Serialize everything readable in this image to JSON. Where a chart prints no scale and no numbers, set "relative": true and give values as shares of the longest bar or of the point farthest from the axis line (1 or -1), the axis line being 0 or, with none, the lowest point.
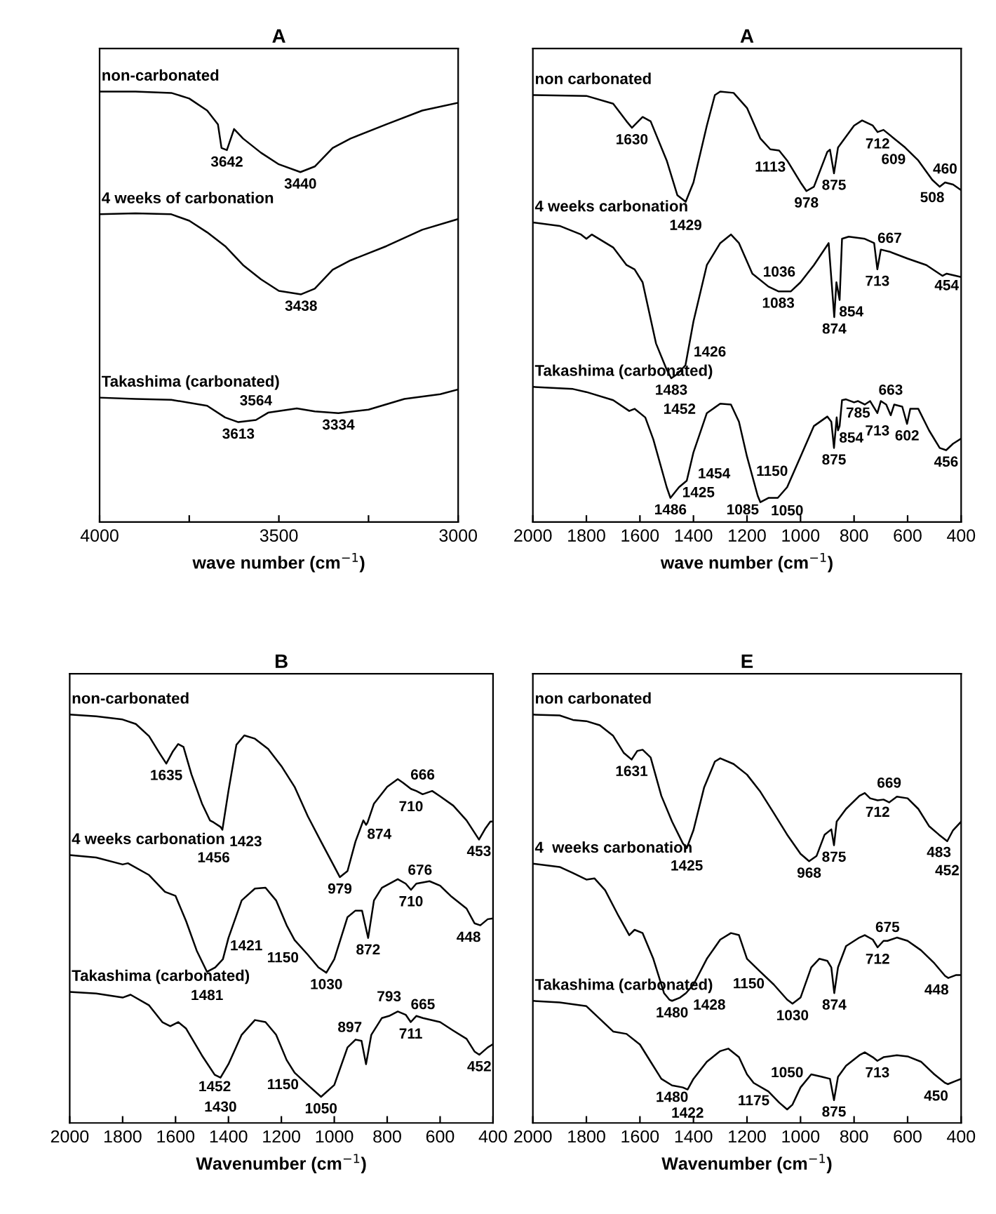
{
  "chart_data": [
    {
      "type": "line",
      "title": "A",
      "xlabel": "wave number (cm$^{−1}$)",
      "relative": true,
      "xlim": [
        4000,
        3000
      ],
      "xticks": [
        4000,
        {
          "value": 3750,
          "label": null
        },
        3500,
        {
          "value": 3250,
          "label": null
        },
        3000
      ],
      "tick_labels": "x",
      "grid": false,
      "legend": false,
      "line_style": "solid",
      "marker": "none",
      "series": [
        {
          "name": "non-carbonated",
          "color": "#000000",
          "x": [
            4000,
            3900,
            3800,
            3750,
            3700,
            3670,
            3660,
            3645,
            3625,
            3600,
            3550,
            3500,
            3440,
            3400,
            3350,
            3300,
            3200,
            3100,
            3000
          ],
          "values": [
            1.0,
            1.0,
            0.997,
            0.984,
            0.956,
            0.924,
            0.869,
            0.864,
            0.913,
            0.891,
            0.858,
            0.831,
            0.813,
            0.826,
            0.869,
            0.891,
            0.924,
            0.956,
            0.974
          ]
        },
        {
          "name": "4 weeks of carbonation",
          "color": "#000000",
          "x": [
            4000,
            3900,
            3800,
            3750,
            3700,
            3650,
            3600,
            3550,
            3500,
            3438,
            3400,
            3350,
            3300,
            3200,
            3100,
            3000
          ],
          "values": [
            0.715,
            0.717,
            0.715,
            0.7,
            0.673,
            0.641,
            0.597,
            0.564,
            0.537,
            0.529,
            0.542,
            0.586,
            0.608,
            0.641,
            0.679,
            0.704
          ]
        },
        {
          "name": "Takashima (carbonated)",
          "color": "#000000",
          "x": [
            4000,
            3900,
            3800,
            3700,
            3650,
            3613,
            3564,
            3530,
            3450,
            3400,
            3334,
            3250,
            3150,
            3050,
            3000
          ],
          "values": [
            0.289,
            0.286,
            0.284,
            0.27,
            0.243,
            0.232,
            0.237,
            0.254,
            0.264,
            0.257,
            0.253,
            0.261,
            0.286,
            0.297,
            0.308
          ]
        }
      ],
      "annotations": [
        {
          "text": "3642",
          "x": 3645,
          "y": 0.864
        },
        {
          "text": "3440",
          "x": 3440,
          "y": 0.813
        },
        {
          "text": "3438",
          "x": 3438,
          "y": 0.529
        },
        {
          "text": "3613",
          "x": 3613,
          "y": 0.232
        },
        {
          "text": "3564",
          "x": 3564,
          "y": 0.237
        },
        {
          "text": "3334",
          "x": 3334,
          "y": 0.253
        }
      ]
    },
    {
      "type": "line",
      "title": "A",
      "xlabel": "wave number (cm$^{−1}$)",
      "relative": true,
      "xlim": [
        2000,
        400
      ],
      "xticks": [
        2000,
        1800,
        1600,
        1400,
        1200,
        1000,
        800,
        600,
        400
      ],
      "tick_labels": "x",
      "grid": false,
      "legend": false,
      "line_style": "solid",
      "marker": "none",
      "series": [
        {
          "name": "non carbonated",
          "color": "#000000",
          "x": [
            2000,
            1800,
            1700,
            1650,
            1630,
            1590,
            1560,
            1500,
            1460,
            1429,
            1400,
            1350,
            1320,
            1300,
            1250,
            1200,
            1150,
            1113,
            1080,
            1050,
            1000,
            978,
            950,
            900,
            890,
            875,
            860,
            800,
            770,
            730,
            712,
            690,
            609,
            560,
            508,
            480,
            460,
            430,
            400
          ],
          "values": [
            0.992,
            0.99,
            0.972,
            0.931,
            0.916,
            0.941,
            0.931,
            0.84,
            0.759,
            0.744,
            0.789,
            0.921,
            0.992,
            1.0,
            0.997,
            0.962,
            0.891,
            0.866,
            0.863,
            0.84,
            0.789,
            0.769,
            0.779,
            0.86,
            0.865,
            0.81,
            0.87,
            0.921,
            0.933,
            0.921,
            0.906,
            0.911,
            0.87,
            0.84,
            0.795,
            0.779,
            0.789,
            0.784,
            0.771
          ]
        },
        {
          "name": "4 weeks carbonation",
          "color": "#000000",
          "x": [
            2000,
            1900,
            1820,
            1800,
            1780,
            1700,
            1650,
            1620,
            1590,
            1540,
            1500,
            1483,
            1460,
            1430,
            1400,
            1350,
            1300,
            1260,
            1230,
            1180,
            1120,
            1083,
            1036,
            1000,
            950,
            895,
            874,
            866,
            854,
            845,
            820,
            760,
            725,
            713,
            700,
            667,
            600,
            530,
            470,
            454,
            420,
            400
          ],
          "values": [
            0.696,
            0.688,
            0.668,
            0.658,
            0.668,
            0.638,
            0.597,
            0.587,
            0.557,
            0.415,
            0.354,
            0.334,
            0.344,
            0.364,
            0.466,
            0.597,
            0.648,
            0.668,
            0.648,
            0.577,
            0.547,
            0.536,
            0.536,
            0.557,
            0.597,
            0.648,
            0.476,
            0.557,
            0.516,
            0.658,
            0.663,
            0.658,
            0.648,
            0.587,
            0.633,
            0.628,
            0.612,
            0.597,
            0.572,
            0.577,
            0.572,
            0.569
          ]
        },
        {
          "name": "Takashima (carbonated)",
          "color": "#000000",
          "x": [
            2000,
            1850,
            1800,
            1700,
            1640,
            1620,
            1580,
            1550,
            1500,
            1486,
            1454,
            1425,
            1400,
            1350,
            1300,
            1260,
            1230,
            1200,
            1160,
            1150,
            1120,
            1085,
            1050,
            1000,
            950,
            900,
            885,
            875,
            865,
            860,
            854,
            845,
            830,
            800,
            785,
            760,
            740,
            713,
            700,
            680,
            663,
            650,
            620,
            602,
            590,
            560,
            520,
            480,
            456,
            430,
            400
          ],
          "values": [
            0.314,
            0.309,
            0.302,
            0.283,
            0.258,
            0.263,
            0.243,
            0.192,
            0.081,
            0.056,
            0.081,
            0.096,
            0.162,
            0.253,
            0.275,
            0.273,
            0.233,
            0.152,
            0.061,
            0.046,
            0.056,
            0.056,
            0.081,
            0.152,
            0.223,
            0.245,
            0.233,
            0.172,
            0.243,
            0.213,
            0.223,
            0.283,
            0.285,
            0.278,
            0.281,
            0.273,
            0.281,
            0.253,
            0.281,
            0.273,
            0.248,
            0.273,
            0.268,
            0.228,
            0.263,
            0.263,
            0.213,
            0.172,
            0.167,
            0.182,
            0.194
          ]
        }
      ],
      "annotations": [
        {
          "text": "1630",
          "x": 1630,
          "y": 0.916
        },
        {
          "text": "1429",
          "x": 1429,
          "y": 0.744
        },
        {
          "text": "1113",
          "x": 1113,
          "y": 0.866
        },
        {
          "text": "978",
          "x": 978,
          "y": 0.769
        },
        {
          "text": "875",
          "x": 875,
          "y": 0.81
        },
        {
          "text": "712",
          "x": 712,
          "y": 0.906
        },
        {
          "text": "609",
          "x": 609,
          "y": 0.87
        },
        {
          "text": "508",
          "x": 508,
          "y": 0.795
        },
        {
          "text": "460",
          "x": 460,
          "y": 0.789
        },
        {
          "text": "667",
          "x": 667,
          "y": 0.628
        },
        {
          "text": "713",
          "x": 713,
          "y": 0.587
        },
        {
          "text": "1083",
          "x": 1083,
          "y": 0.536
        },
        {
          "text": "1036",
          "x": 1036,
          "y": 0.536
        },
        {
          "text": "854",
          "x": 854,
          "y": 0.516
        },
        {
          "text": "874",
          "x": 874,
          "y": 0.476
        },
        {
          "text": "454",
          "x": 454,
          "y": 0.577
        },
        {
          "text": "1483",
          "x": 1483,
          "y": 0.334
        },
        {
          "text": "1426",
          "x": 1426,
          "y": 0.364
        },
        {
          "text": "1452",
          "x": 1452,
          "y": 0.344
        },
        {
          "text": "785",
          "x": 785,
          "y": 0.281
        },
        {
          "text": "713",
          "x": 713,
          "y": 0.253
        },
        {
          "text": "602",
          "x": 602,
          "y": 0.228
        },
        {
          "text": "854",
          "x": 854,
          "y": 0.223
        },
        {
          "text": "663",
          "x": 663,
          "y": 0.248
        },
        {
          "text": "875",
          "x": 875,
          "y": 0.172
        },
        {
          "text": "456",
          "x": 456,
          "y": 0.167
        },
        {
          "text": "1425",
          "x": 1425,
          "y": 0.096
        },
        {
          "text": "1050",
          "x": 1050,
          "y": 0.081
        },
        {
          "text": "1486",
          "x": 1486,
          "y": 0.056
        },
        {
          "text": "1454",
          "x": 1454,
          "y": 0.081
        },
        {
          "text": "1150",
          "x": 1150,
          "y": 0.046
        },
        {
          "text": "1085",
          "x": 1085,
          "y": 0.056
        }
      ]
    },
    {
      "type": "line",
      "title": "B",
      "xlabel": "Wavenumber (cm$^{−1}$)",
      "relative": true,
      "xlim": [
        2000,
        400
      ],
      "xticks": [
        2000,
        1800,
        1600,
        1400,
        1200,
        1000,
        800,
        600,
        400
      ],
      "tick_labels": "x",
      "grid": false,
      "legend": false,
      "line_style": "solid",
      "marker": "none",
      "series": [
        {
          "name": "non-carbonated",
          "color": "#000000",
          "x": [
            2000,
            1900,
            1800,
            1750,
            1700,
            1660,
            1635,
            1610,
            1590,
            1570,
            1540,
            1500,
            1470,
            1456,
            1430,
            1423,
            1400,
            1370,
            1340,
            1300,
            1250,
            1200,
            1150,
            1100,
            1050,
            1000,
            979,
            950,
            920,
            890,
            880,
            874,
            850,
            800,
            760,
            740,
            710,
            690,
            666,
            630,
            600,
            550,
            500,
            453,
            430,
            410,
            400
          ],
          "values": [
            1.0,
            0.996,
            0.988,
            0.977,
            0.947,
            0.905,
            0.88,
            0.91,
            0.928,
            0.921,
            0.854,
            0.782,
            0.741,
            0.736,
            0.725,
            0.718,
            0.813,
            0.926,
            0.949,
            0.941,
            0.916,
            0.874,
            0.823,
            0.751,
            0.689,
            0.628,
            0.602,
            0.617,
            0.689,
            0.741,
            0.73,
            0.736,
            0.782,
            0.823,
            0.842,
            0.833,
            0.818,
            0.813,
            0.805,
            0.813,
            0.8,
            0.777,
            0.741,
            0.694,
            0.72,
            0.738,
            0.738
          ]
        },
        {
          "name": "4 weeks carbonation",
          "color": "#000000",
          "x": [
            2000,
            1900,
            1800,
            1780,
            1700,
            1640,
            1600,
            1560,
            1520,
            1481,
            1450,
            1421,
            1400,
            1350,
            1300,
            1260,
            1220,
            1180,
            1150,
            1100,
            1060,
            1030,
            1000,
            950,
            920,
            895,
            872,
            850,
            820,
            760,
            730,
            710,
            690,
            640,
            600,
            560,
            500,
            470,
            448,
            420,
            400
          ],
          "values": [
            0.656,
            0.65,
            0.633,
            0.636,
            0.607,
            0.566,
            0.556,
            0.494,
            0.422,
            0.37,
            0.381,
            0.401,
            0.453,
            0.545,
            0.574,
            0.576,
            0.545,
            0.484,
            0.448,
            0.412,
            0.381,
            0.368,
            0.401,
            0.504,
            0.52,
            0.52,
            0.453,
            0.545,
            0.576,
            0.597,
            0.586,
            0.571,
            0.586,
            0.592,
            0.581,
            0.556,
            0.525,
            0.489,
            0.484,
            0.499,
            0.501
          ]
        },
        {
          "name": "Takashima (carbonated)",
          "color": "#000000",
          "x": [
            2000,
            1900,
            1800,
            1770,
            1700,
            1650,
            1620,
            1590,
            1560,
            1500,
            1452,
            1430,
            1400,
            1350,
            1300,
            1260,
            1220,
            1180,
            1150,
            1100,
            1050,
            1000,
            950,
            920,
            897,
            880,
            860,
            820,
            793,
            760,
            730,
            711,
            690,
            665,
            600,
            550,
            500,
            470,
            452,
            420,
            400
          ],
          "values": [
            0.321,
            0.317,
            0.307,
            0.314,
            0.288,
            0.247,
            0.237,
            0.247,
            0.231,
            0.165,
            0.118,
            0.111,
            0.144,
            0.216,
            0.252,
            0.247,
            0.216,
            0.154,
            0.123,
            0.093,
            0.064,
            0.093,
            0.185,
            0.204,
            0.201,
            0.144,
            0.216,
            0.257,
            0.262,
            0.273,
            0.265,
            0.247,
            0.262,
            0.257,
            0.247,
            0.226,
            0.206,
            0.175,
            0.167,
            0.185,
            0.193
          ]
        }
      ],
      "annotations": [
        {
          "text": "1635",
          "x": 1635,
          "y": 0.88
        },
        {
          "text": "1456",
          "x": 1456,
          "y": 0.736
        },
        {
          "text": "1423",
          "x": 1423,
          "y": 0.718
        },
        {
          "text": "979",
          "x": 979,
          "y": 0.602
        },
        {
          "text": "874",
          "x": 874,
          "y": 0.736
        },
        {
          "text": "710",
          "x": 710,
          "y": 0.818
        },
        {
          "text": "666",
          "x": 666,
          "y": 0.805
        },
        {
          "text": "453",
          "x": 453,
          "y": 0.694
        },
        {
          "text": "1481",
          "x": 1481,
          "y": 0.37
        },
        {
          "text": "1421",
          "x": 1421,
          "y": 0.401
        },
        {
          "text": "1150",
          "x": 1150,
          "y": 0.448
        },
        {
          "text": "1030",
          "x": 1030,
          "y": 0.368
        },
        {
          "text": "872",
          "x": 872,
          "y": 0.453
        },
        {
          "text": "710",
          "x": 710,
          "y": 0.571
        },
        {
          "text": "676",
          "x": 676,
          "y": 0.586
        },
        {
          "text": "448",
          "x": 448,
          "y": 0.484
        },
        {
          "text": "1452",
          "x": 1452,
          "y": 0.118
        },
        {
          "text": "1430",
          "x": 1430,
          "y": 0.111
        },
        {
          "text": "1150",
          "x": 1150,
          "y": 0.123
        },
        {
          "text": "1050",
          "x": 1050,
          "y": 0.064
        },
        {
          "text": "897",
          "x": 897,
          "y": 0.201
        },
        {
          "text": "793",
          "x": 793,
          "y": 0.262
        },
        {
          "text": "711",
          "x": 711,
          "y": 0.247
        },
        {
          "text": "665",
          "x": 665,
          "y": 0.257
        },
        {
          "text": "452",
          "x": 452,
          "y": 0.167
        }
      ]
    },
    {
      "type": "line",
      "title": "E",
      "xlabel": "Wavenumber (cm$^{−1}$)",
      "relative": true,
      "xlim": [
        2000,
        400
      ],
      "xticks": [
        2000,
        1800,
        1600,
        1400,
        1200,
        1000,
        800,
        600,
        400
      ],
      "tick_labels": "x",
      "grid": false,
      "legend": false,
      "line_style": "solid",
      "marker": "none",
      "series": [
        {
          "name": "non carbonated",
          "color": "#000000",
          "x": [
            2000,
            1900,
            1850,
            1800,
            1750,
            1700,
            1660,
            1631,
            1610,
            1590,
            1560,
            1520,
            1480,
            1440,
            1425,
            1400,
            1360,
            1320,
            1300,
            1250,
            1200,
            1150,
            1100,
            1050,
            1000,
            968,
            940,
            910,
            885,
            875,
            865,
            830,
            780,
            760,
            740,
            712,
            690,
            669,
            640,
            600,
            560,
            520,
            483,
            452,
            430,
            400
          ],
          "values": [
            1.0,
            0.998,
            0.987,
            0.984,
            0.974,
            0.948,
            0.906,
            0.89,
            0.911,
            0.914,
            0.895,
            0.801,
            0.738,
            0.685,
            0.673,
            0.717,
            0.822,
            0.885,
            0.893,
            0.879,
            0.853,
            0.811,
            0.759,
            0.706,
            0.659,
            0.641,
            0.654,
            0.706,
            0.719,
            0.68,
            0.738,
            0.769,
            0.801,
            0.808,
            0.795,
            0.79,
            0.792,
            0.785,
            0.799,
            0.795,
            0.769,
            0.727,
            0.706,
            0.69,
            0.717,
            0.738
          ]
        },
        {
          "name": "4  weeks carbonation",
          "color": "#000000",
          "x": [
            2000,
            1900,
            1850,
            1800,
            1770,
            1730,
            1680,
            1640,
            1620,
            1590,
            1550,
            1510,
            1490,
            1480,
            1450,
            1428,
            1400,
            1350,
            1300,
            1260,
            1230,
            1200,
            1150,
            1100,
            1050,
            1030,
            1000,
            960,
            930,
            900,
            885,
            874,
            860,
            830,
            780,
            760,
            730,
            712,
            690,
            675,
            640,
            600,
            550,
            500,
            460,
            448,
            420,
            400
          ],
          "values": [
            0.635,
            0.627,
            0.612,
            0.596,
            0.599,
            0.57,
            0.507,
            0.46,
            0.473,
            0.465,
            0.402,
            0.318,
            0.302,
            0.299,
            0.307,
            0.318,
            0.339,
            0.402,
            0.449,
            0.465,
            0.46,
            0.402,
            0.37,
            0.339,
            0.302,
            0.292,
            0.307,
            0.381,
            0.402,
            0.397,
            0.381,
            0.318,
            0.381,
            0.433,
            0.454,
            0.46,
            0.449,
            0.43,
            0.446,
            0.446,
            0.454,
            0.446,
            0.423,
            0.391,
            0.36,
            0.355,
            0.362,
            0.362
          ]
        },
        {
          "name": "Takashima (carbonated)",
          "color": "#000000",
          "x": [
            2000,
            1900,
            1800,
            1750,
            1700,
            1650,
            1600,
            1560,
            1520,
            1480,
            1440,
            1422,
            1400,
            1350,
            1300,
            1270,
            1230,
            1200,
            1175,
            1120,
            1080,
            1050,
            1030,
            1000,
            960,
            920,
            890,
            875,
            860,
            830,
            780,
            760,
            730,
            713,
            690,
            640,
            600,
            550,
            500,
            460,
            450,
            420,
            400
          ],
          "values": [
            0.299,
            0.295,
            0.286,
            0.255,
            0.224,
            0.218,
            0.192,
            0.15,
            0.108,
            0.092,
            0.087,
            0.082,
            0.108,
            0.15,
            0.176,
            0.182,
            0.161,
            0.119,
            0.098,
            0.077,
            0.05,
            0.033,
            0.045,
            0.087,
            0.119,
            0.113,
            0.108,
            0.056,
            0.113,
            0.14,
            0.166,
            0.173,
            0.161,
            0.152,
            0.161,
            0.166,
            0.163,
            0.15,
            0.119,
            0.098,
            0.095,
            0.103,
            0.108
          ]
        }
      ],
      "annotations": [
        {
          "text": "1631",
          "x": 1631,
          "y": 0.89
        },
        {
          "text": "1425",
          "x": 1425,
          "y": 0.673
        },
        {
          "text": "968",
          "x": 968,
          "y": 0.641
        },
        {
          "text": "875",
          "x": 875,
          "y": 0.68
        },
        {
          "text": "712",
          "x": 712,
          "y": 0.79
        },
        {
          "text": "669",
          "x": 669,
          "y": 0.785
        },
        {
          "text": "483",
          "x": 483,
          "y": 0.706
        },
        {
          "text": "452",
          "x": 452,
          "y": 0.69
        },
        {
          "text": "1480",
          "x": 1480,
          "y": 0.299
        },
        {
          "text": "1428",
          "x": 1428,
          "y": 0.318
        },
        {
          "text": "1150",
          "x": 1150,
          "y": 0.37
        },
        {
          "text": "1030",
          "x": 1030,
          "y": 0.292
        },
        {
          "text": "874",
          "x": 874,
          "y": 0.318
        },
        {
          "text": "712",
          "x": 712,
          "y": 0.43
        },
        {
          "text": "675",
          "x": 675,
          "y": 0.446
        },
        {
          "text": "448",
          "x": 448,
          "y": 0.355
        },
        {
          "text": "1480",
          "x": 1480,
          "y": 0.092
        },
        {
          "text": "1422",
          "x": 1422,
          "y": 0.082
        },
        {
          "text": "1175",
          "x": 1175,
          "y": 0.098
        },
        {
          "text": "1050",
          "x": 1050,
          "y": 0.033
        },
        {
          "text": "875",
          "x": 875,
          "y": 0.056
        },
        {
          "text": "713",
          "x": 713,
          "y": 0.152
        },
        {
          "text": "450",
          "x": 450,
          "y": 0.095
        }
      ]
    }
  ]
}
